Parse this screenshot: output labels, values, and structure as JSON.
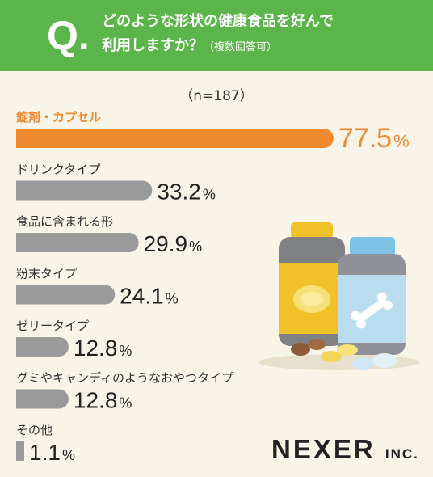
{
  "header": {
    "q_mark": "Q.",
    "question_line1": "どのような形状の健康食品を好んで",
    "question_line2": "利用しますか？",
    "question_note": "（複数回答可）"
  },
  "sample_size": "（n=187）",
  "logo": {
    "name": "NEXER",
    "suffix": "INC."
  },
  "colors": {
    "header": "#5cb54a",
    "highlight": "#f08a30",
    "bar": "#9a9a9a",
    "background": "#f8f4e8"
  },
  "chart_data": {
    "type": "bar",
    "orientation": "horizontal",
    "title": "どのような形状の健康食品を好んで利用しますか？",
    "unit": "%",
    "xlim": [
      0,
      100
    ],
    "categories": [
      "錠剤・カプセル",
      "ドリンクタイプ",
      "食品に含まれる形",
      "粉末タイプ",
      "ゼリータイプ",
      "グミやキャンディのようなおやつタイプ",
      "その他"
    ],
    "values": [
      77.5,
      33.2,
      29.9,
      24.1,
      12.8,
      12.8,
      1.1
    ],
    "value_labels": [
      "77.5",
      "33.2",
      "29.9",
      "24.1",
      "12.8",
      "12.8",
      "1.1"
    ],
    "highlight_index": 0,
    "grid": false,
    "legend": "none"
  }
}
